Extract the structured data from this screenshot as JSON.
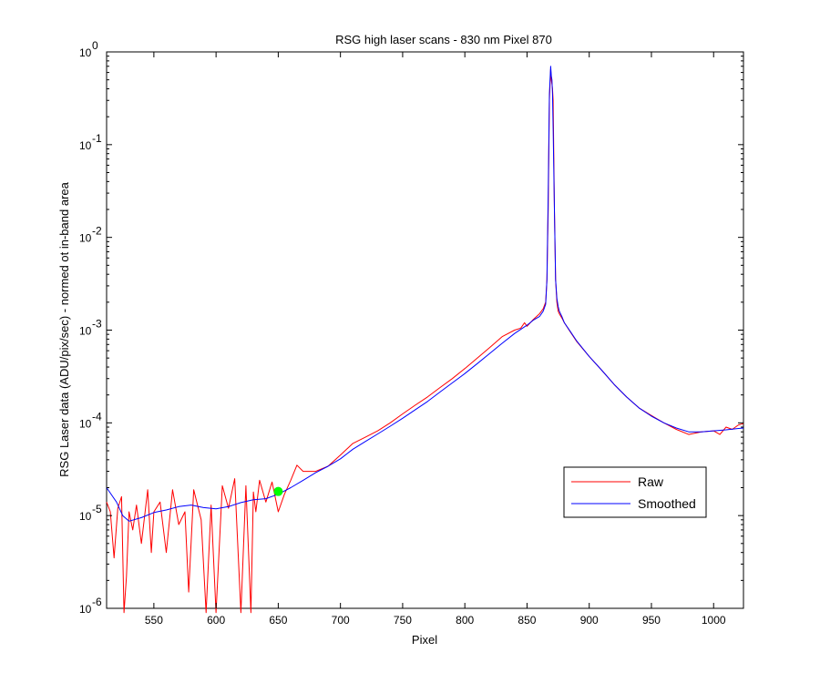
{
  "chart_data": {
    "type": "line",
    "title": "RSG high laser scans  - 830 nm    Pixel 870",
    "xlabel": "Pixel",
    "ylabel": "RSG Laser data (ADU/pix/sec) - normed ot in-band area",
    "xlim": [
      512,
      1024
    ],
    "ylim": [
      1e-06,
      1
    ],
    "yscale": "log",
    "grid": false,
    "legend_position": "lower-right",
    "x_ticks": [
      550,
      600,
      650,
      700,
      750,
      800,
      850,
      900,
      950,
      1000
    ],
    "y_ticks": [
      {
        "value": 1,
        "base": "10",
        "exp": "0"
      },
      {
        "value": 0.1,
        "base": "10",
        "exp": "-1"
      },
      {
        "value": 0.01,
        "base": "10",
        "exp": "-2"
      },
      {
        "value": 0.001,
        "base": "10",
        "exp": "-3"
      },
      {
        "value": 0.0001,
        "base": "10",
        "exp": "-4"
      },
      {
        "value": 1e-05,
        "base": "10",
        "exp": "-5"
      },
      {
        "value": 1e-06,
        "base": "10",
        "exp": "-6"
      }
    ],
    "series": [
      {
        "name": "Raw",
        "color": "#ff0000",
        "x": [
          512,
          515,
          518,
          521,
          524,
          526,
          528,
          530,
          533,
          536,
          540,
          545,
          548,
          550,
          555,
          560,
          565,
          570,
          575,
          578,
          582,
          588,
          592,
          596,
          600,
          605,
          610,
          615,
          620,
          624,
          628,
          630,
          632,
          635,
          640,
          645,
          650,
          655,
          660,
          665,
          670,
          680,
          690,
          700,
          710,
          720,
          730,
          740,
          750,
          760,
          770,
          780,
          790,
          800,
          810,
          820,
          830,
          840,
          845,
          848,
          850,
          855,
          860,
          863,
          865,
          866,
          867,
          868,
          869,
          869.5,
          870,
          870.5,
          871,
          872,
          873,
          874,
          875,
          876,
          878,
          880,
          885,
          890,
          900,
          910,
          920,
          930,
          940,
          950,
          960,
          970,
          980,
          990,
          1000,
          1005,
          1010,
          1015,
          1020,
          1024
        ],
        "y": [
          1.4e-05,
          1.1e-05,
          3.5e-06,
          1.2e-05,
          1.6e-05,
          9e-07,
          2.2e-06,
          1.1e-05,
          7e-06,
          1.3e-05,
          5e-06,
          1.9e-05,
          4e-06,
          1.1e-05,
          1.4e-05,
          4e-06,
          1.9e-05,
          8e-06,
          1.1e-05,
          1.5e-06,
          1.9e-05,
          9e-06,
          9e-07,
          1.3e-05,
          9e-07,
          2.1e-05,
          1.2e-05,
          2.5e-05,
          9e-07,
          2.1e-05,
          9e-07,
          1.8e-05,
          1.1e-05,
          2.4e-05,
          1.4e-05,
          2.3e-05,
          1.1e-05,
          1.7e-05,
          2.4e-05,
          3.5e-05,
          3e-05,
          3e-05,
          3.4e-05,
          4.5e-05,
          6e-05,
          7e-05,
          8.2e-05,
          0.0001,
          0.000125,
          0.000155,
          0.00019,
          0.00024,
          0.0003,
          0.000385,
          0.0005,
          0.00065,
          0.00085,
          0.001,
          0.00105,
          0.0012,
          0.0011,
          0.0013,
          0.0015,
          0.0017,
          0.002,
          0.0035,
          0.02,
          0.3,
          0.65,
          0.5,
          0.45,
          0.4,
          0.3,
          0.02,
          0.0035,
          0.002,
          0.0016,
          0.0015,
          0.00135,
          0.0012,
          0.00095,
          0.00075,
          0.00052,
          0.00037,
          0.00026,
          0.00019,
          0.000145,
          0.00012,
          0.0001,
          8.5e-05,
          7.5e-05,
          8e-05,
          8.2e-05,
          7.5e-05,
          9e-05,
          8.5e-05,
          9.5e-05,
          9.8e-05
        ]
      },
      {
        "name": "Smoothed",
        "color": "#0000ff",
        "x": [
          512,
          520,
          525,
          530,
          540,
          550,
          560,
          570,
          580,
          590,
          600,
          610,
          620,
          630,
          640,
          650,
          660,
          670,
          680,
          690,
          700,
          710,
          720,
          730,
          740,
          750,
          760,
          770,
          780,
          790,
          800,
          810,
          820,
          830,
          840,
          850,
          855,
          860,
          863,
          865,
          866,
          867,
          868,
          869,
          869.5,
          870,
          870.5,
          871,
          872,
          873,
          874,
          875,
          876,
          878,
          880,
          885,
          890,
          900,
          910,
          920,
          930,
          940,
          950,
          960,
          970,
          980,
          990,
          1000,
          1010,
          1020,
          1024
        ],
        "y": [
          2e-05,
          1.4e-05,
          1e-05,
          8.7e-06,
          9.5e-06,
          1.08e-05,
          1.15e-05,
          1.25e-05,
          1.3e-05,
          1.22e-05,
          1.18e-05,
          1.25e-05,
          1.38e-05,
          1.48e-05,
          1.52e-05,
          1.7e-05,
          2e-05,
          2.4e-05,
          2.9e-05,
          3.4e-05,
          4.1e-05,
          5.2e-05,
          6.3e-05,
          7.6e-05,
          9.2e-05,
          0.000112,
          0.000138,
          0.00017,
          0.000215,
          0.00027,
          0.00034,
          0.000435,
          0.00056,
          0.00072,
          0.00092,
          0.00113,
          0.00128,
          0.0014,
          0.0016,
          0.0019,
          0.0035,
          0.03,
          0.35,
          0.7,
          0.55,
          0.5,
          0.35,
          0.15,
          0.02,
          0.0035,
          0.0022,
          0.0018,
          0.0016,
          0.0014,
          0.0012,
          0.00096,
          0.00076,
          0.00052,
          0.00037,
          0.00026,
          0.00019,
          0.000145,
          0.000118,
          0.0001,
          8.8e-05,
          8e-05,
          8e-05,
          8.2e-05,
          8.4e-05,
          8.7e-05,
          8.8e-05
        ]
      }
    ],
    "marker": {
      "x": 650,
      "y": 1.82e-05,
      "color": "#00ff00"
    }
  }
}
